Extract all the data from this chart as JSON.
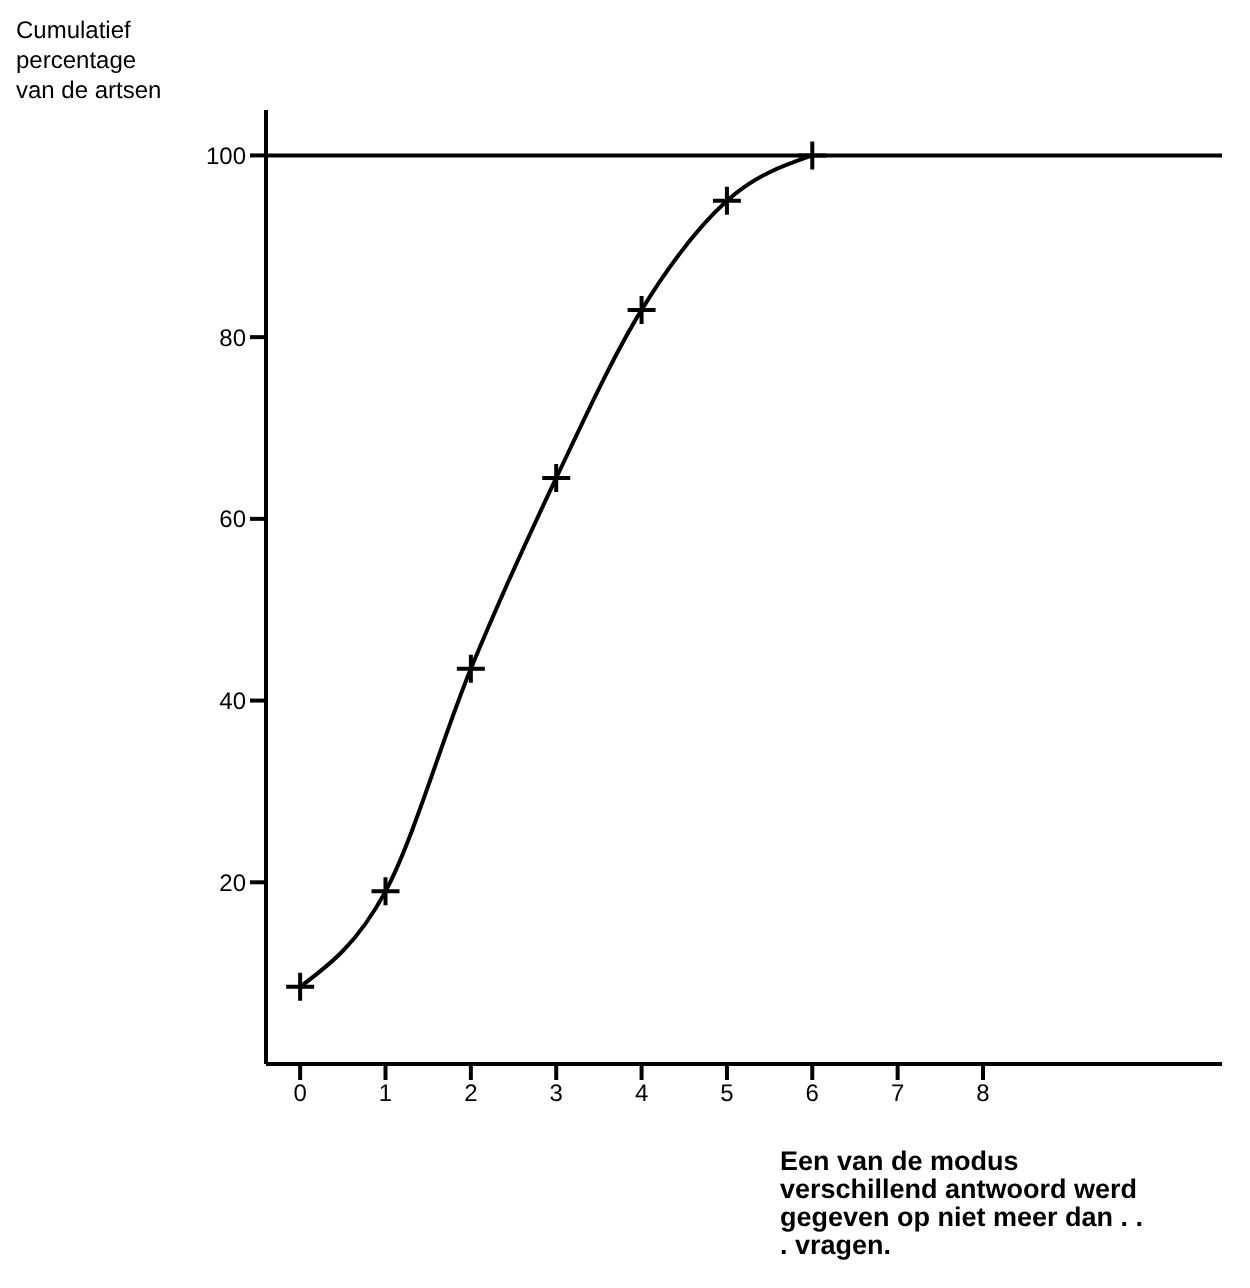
{
  "chart_data": {
    "type": "line",
    "ylabel": "Cumulatief percentage van de artsen",
    "xlabel": "Een van de modus verschillend antwoord werd gegeven op niet meer dan . . . vragen.",
    "x": [
      0,
      1,
      2,
      3,
      4,
      5,
      6
    ],
    "series": [
      {
        "color": "#000000",
        "values": [
          8.5,
          19,
          43.5,
          64.5,
          83,
          95,
          100
        ]
      }
    ],
    "xlim": [
      -0.4,
      10.8
    ],
    "xticks": [
      0,
      1,
      2,
      3,
      4,
      5,
      6,
      7,
      8
    ],
    "ylim": [
      0,
      105
    ],
    "yticks": [
      20,
      40,
      60,
      80,
      100
    ],
    "ref_lines": [
      {
        "axis": "y",
        "value": 100,
        "color": "#000000"
      }
    ],
    "marker": "cross",
    "line_style": "solid"
  }
}
